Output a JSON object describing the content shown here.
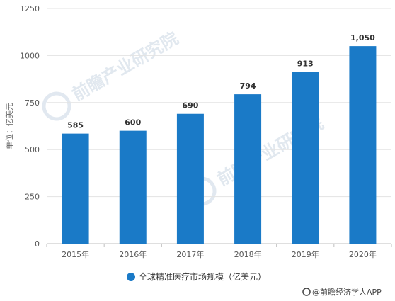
{
  "chart_data": {
    "type": "bar",
    "categories": [
      "2015年",
      "2016年",
      "2017年",
      "2018年",
      "2019年",
      "2020年"
    ],
    "series": [
      {
        "name": "全球精准医疗市场规模（亿美元）",
        "values": [
          585,
          600,
          690,
          794,
          913,
          1050
        ],
        "labels": [
          "585",
          "600",
          "690",
          "794",
          "913",
          "1,050"
        ],
        "color": "#1a7ac7"
      }
    ],
    "ylabel": "单位：亿美元",
    "ylim": [
      0,
      1250
    ],
    "yticks": [
      0,
      250,
      500,
      750,
      1000,
      1250
    ],
    "grid": true,
    "legend_position": "bottom-center"
  },
  "watermark": {
    "text": "前瞻产业研究院",
    "icon": "qianzhan-logo-icon"
  },
  "source": {
    "icon": "at-icon",
    "text": "@前瞻经济学人APP"
  }
}
